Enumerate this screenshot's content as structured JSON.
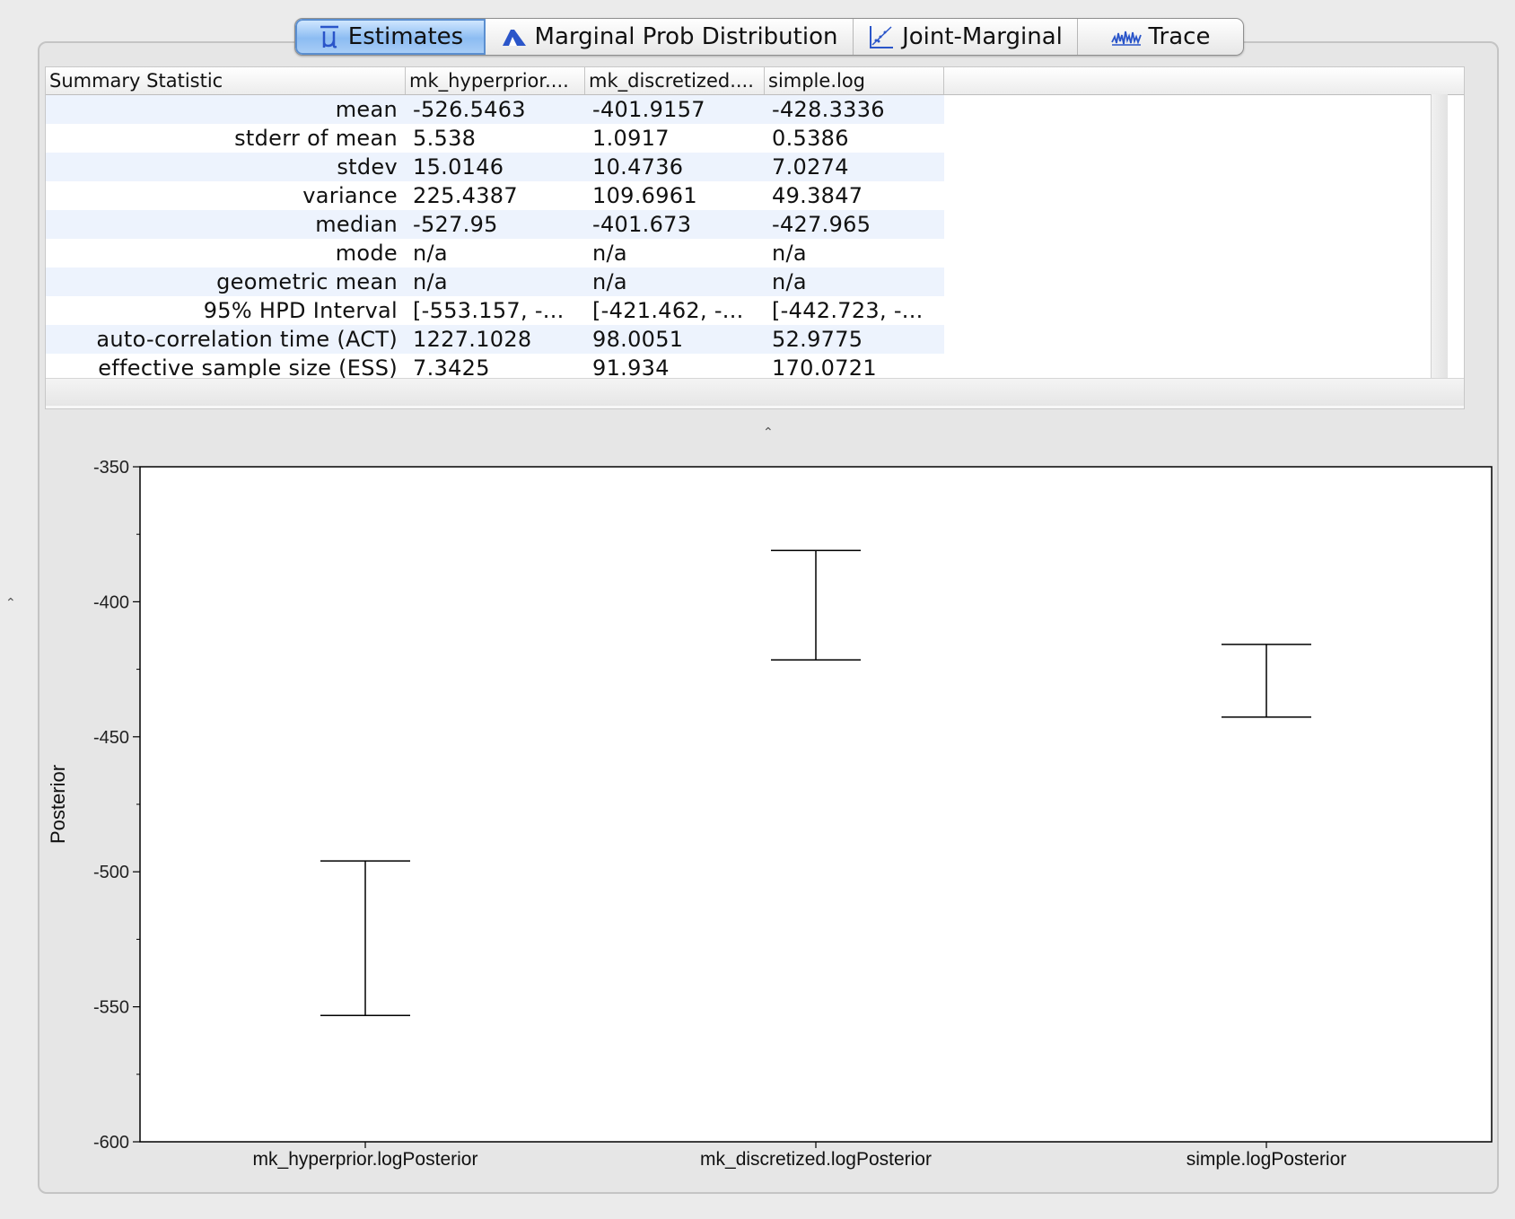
{
  "tabs": [
    {
      "label": "Estimates",
      "icon": "mean-mu-icon",
      "active": true
    },
    {
      "label": "Marginal Prob Distribution",
      "icon": "distribution-icon",
      "active": false
    },
    {
      "label": "Joint-Marginal",
      "icon": "joint-marginal-icon",
      "active": false
    },
    {
      "label": "Trace",
      "icon": "trace-icon",
      "active": false
    }
  ],
  "table": {
    "headers": [
      "Summary Statistic",
      "mk_hyperprior....",
      "mk_discretized....",
      "simple.log"
    ],
    "rows": [
      {
        "label": "mean",
        "values": [
          "-526.5463",
          "-401.9157",
          "-428.3336"
        ]
      },
      {
        "label": "stderr of mean",
        "values": [
          "5.538",
          "1.0917",
          "0.5386"
        ]
      },
      {
        "label": "stdev",
        "values": [
          "15.0146",
          "10.4736",
          "7.0274"
        ]
      },
      {
        "label": "variance",
        "values": [
          "225.4387",
          "109.6961",
          "49.3847"
        ]
      },
      {
        "label": "median",
        "values": [
          "-527.95",
          "-401.673",
          "-427.965"
        ]
      },
      {
        "label": "mode",
        "values": [
          "n/a",
          "n/a",
          "n/a"
        ]
      },
      {
        "label": "geometric mean",
        "values": [
          "n/a",
          "n/a",
          "n/a"
        ]
      },
      {
        "label": "95% HPD Interval",
        "values": [
          "[-553.157, -...",
          "[-421.462, -...",
          "[-442.723, -..."
        ]
      },
      {
        "label": "auto-correlation time (ACT)",
        "values": [
          "1227.1028",
          "98.0051",
          "52.9775"
        ]
      },
      {
        "label": "effective sample size (ESS)",
        "values": [
          "7.3425",
          "91.934",
          "170.0721"
        ]
      }
    ]
  },
  "chart_data": {
    "type": "errorbar",
    "ylabel": "Posterior",
    "ylim": [
      -600,
      -350
    ],
    "yticks": [
      "-350",
      "-400",
      "-450",
      "-500",
      "-550",
      "-600"
    ],
    "categories": [
      "mk_hyperprior.logPosterior",
      "mk_discretized.logPosterior",
      "simple.logPosterior"
    ],
    "intervals": [
      {
        "low": -553.2,
        "high": -496.0
      },
      {
        "low": -421.5,
        "high": -381.0
      },
      {
        "low": -442.7,
        "high": -415.8
      }
    ],
    "grid": false
  }
}
